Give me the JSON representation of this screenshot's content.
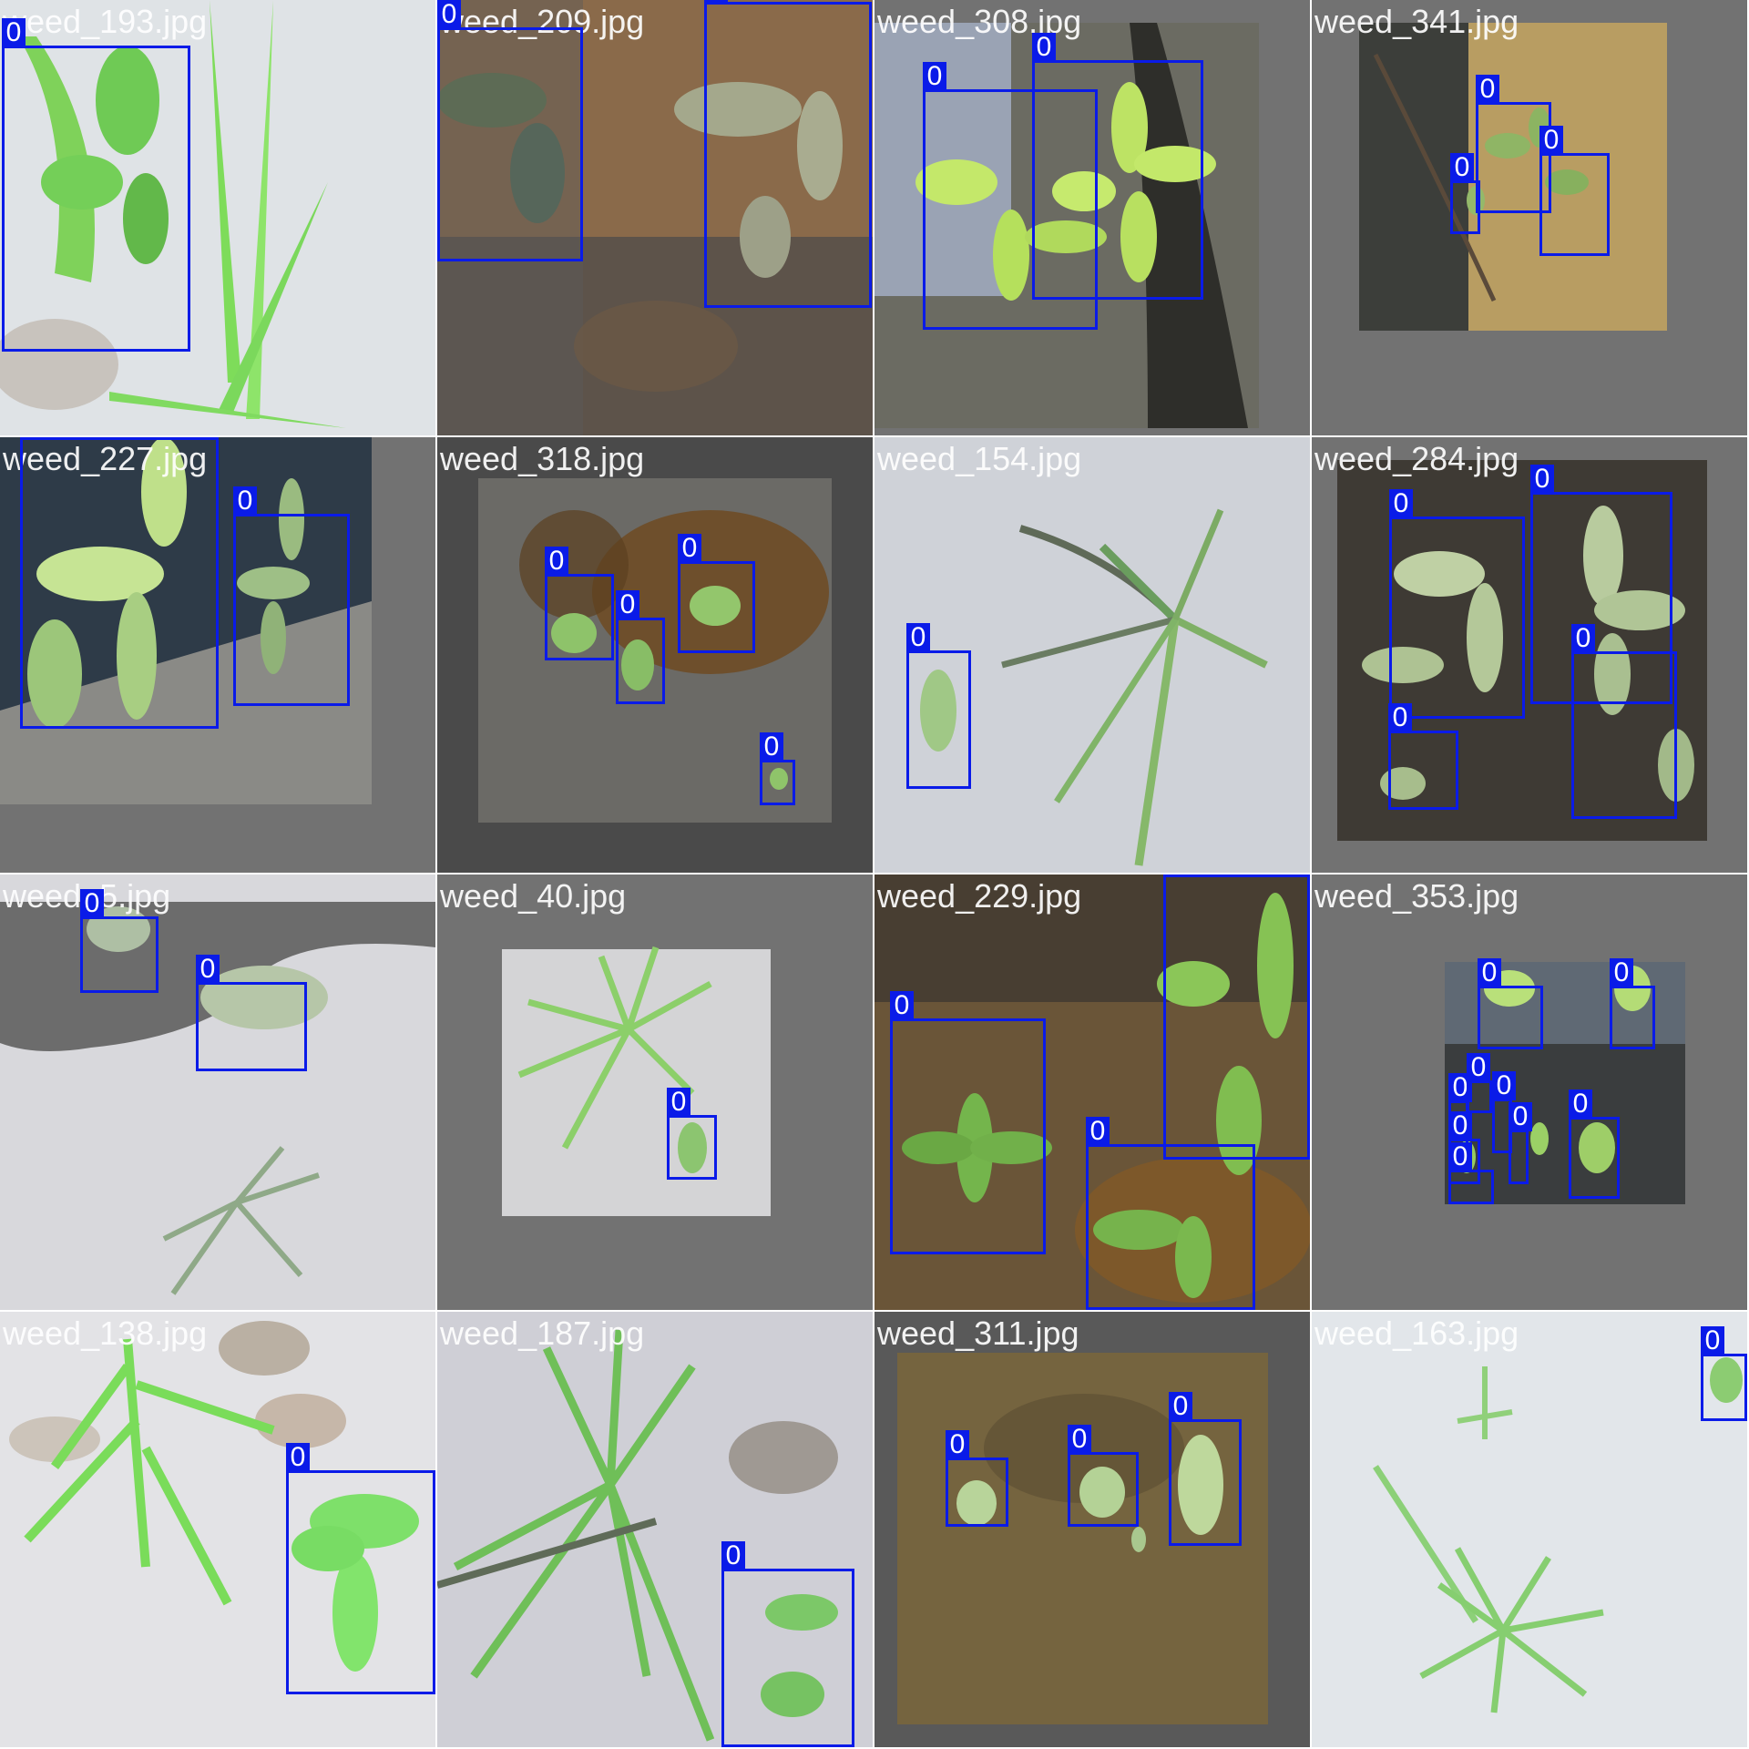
{
  "accent_color": "#0a1be8",
  "tiles": [
    {
      "name": "weed_193.jpg",
      "bg": "#dfe3e6",
      "boxes": [
        "0"
      ]
    },
    {
      "name": "weed_209.jpg",
      "bg": "#8a6a4a",
      "boxes": [
        "0",
        "0"
      ]
    },
    {
      "name": "weed_308.jpg",
      "bg": "#6b6b62",
      "boxes": [
        "0",
        "0"
      ]
    },
    {
      "name": "weed_341.jpg",
      "bg": "#727272",
      "boxes": [
        "0",
        "0",
        "0",
        "0"
      ]
    },
    {
      "name": "weed_227.jpg",
      "bg": "#727272",
      "boxes": [
        "0",
        "0"
      ]
    },
    {
      "name": "weed_318.jpg",
      "bg": "#4a4a4a",
      "boxes": [
        "0",
        "0",
        "0",
        "0"
      ]
    },
    {
      "name": "weed_154.jpg",
      "bg": "#cfd2d8",
      "boxes": [
        "0"
      ]
    },
    {
      "name": "weed_284.jpg",
      "bg": "#727272",
      "boxes": [
        "0",
        "0",
        "0",
        "0"
      ]
    },
    {
      "name": "weed_5.jpg",
      "bg": "#d8d8dc",
      "boxes": [
        "0",
        "0"
      ]
    },
    {
      "name": "weed_40.jpg",
      "bg": "#727272",
      "boxes": [
        "0"
      ]
    },
    {
      "name": "weed_229.jpg",
      "bg": "#6a5538",
      "boxes": [
        "0",
        "0",
        "0"
      ]
    },
    {
      "name": "weed_353.jpg",
      "bg": "#727272",
      "boxes": [
        "0",
        "0",
        "0",
        "0",
        "0",
        "0",
        "0",
        "0",
        "0"
      ]
    },
    {
      "name": "weed_138.jpg",
      "bg": "#e3e3e6",
      "boxes": [
        "0"
      ]
    },
    {
      "name": "weed_187.jpg",
      "bg": "#cfcfd6",
      "boxes": [
        "0"
      ]
    },
    {
      "name": "weed_311.jpg",
      "bg": "#595959",
      "boxes": [
        "0",
        "0",
        "0"
      ]
    },
    {
      "name": "weed_163.jpg",
      "bg": "#e2e6ea",
      "boxes": [
        "0"
      ]
    }
  ]
}
